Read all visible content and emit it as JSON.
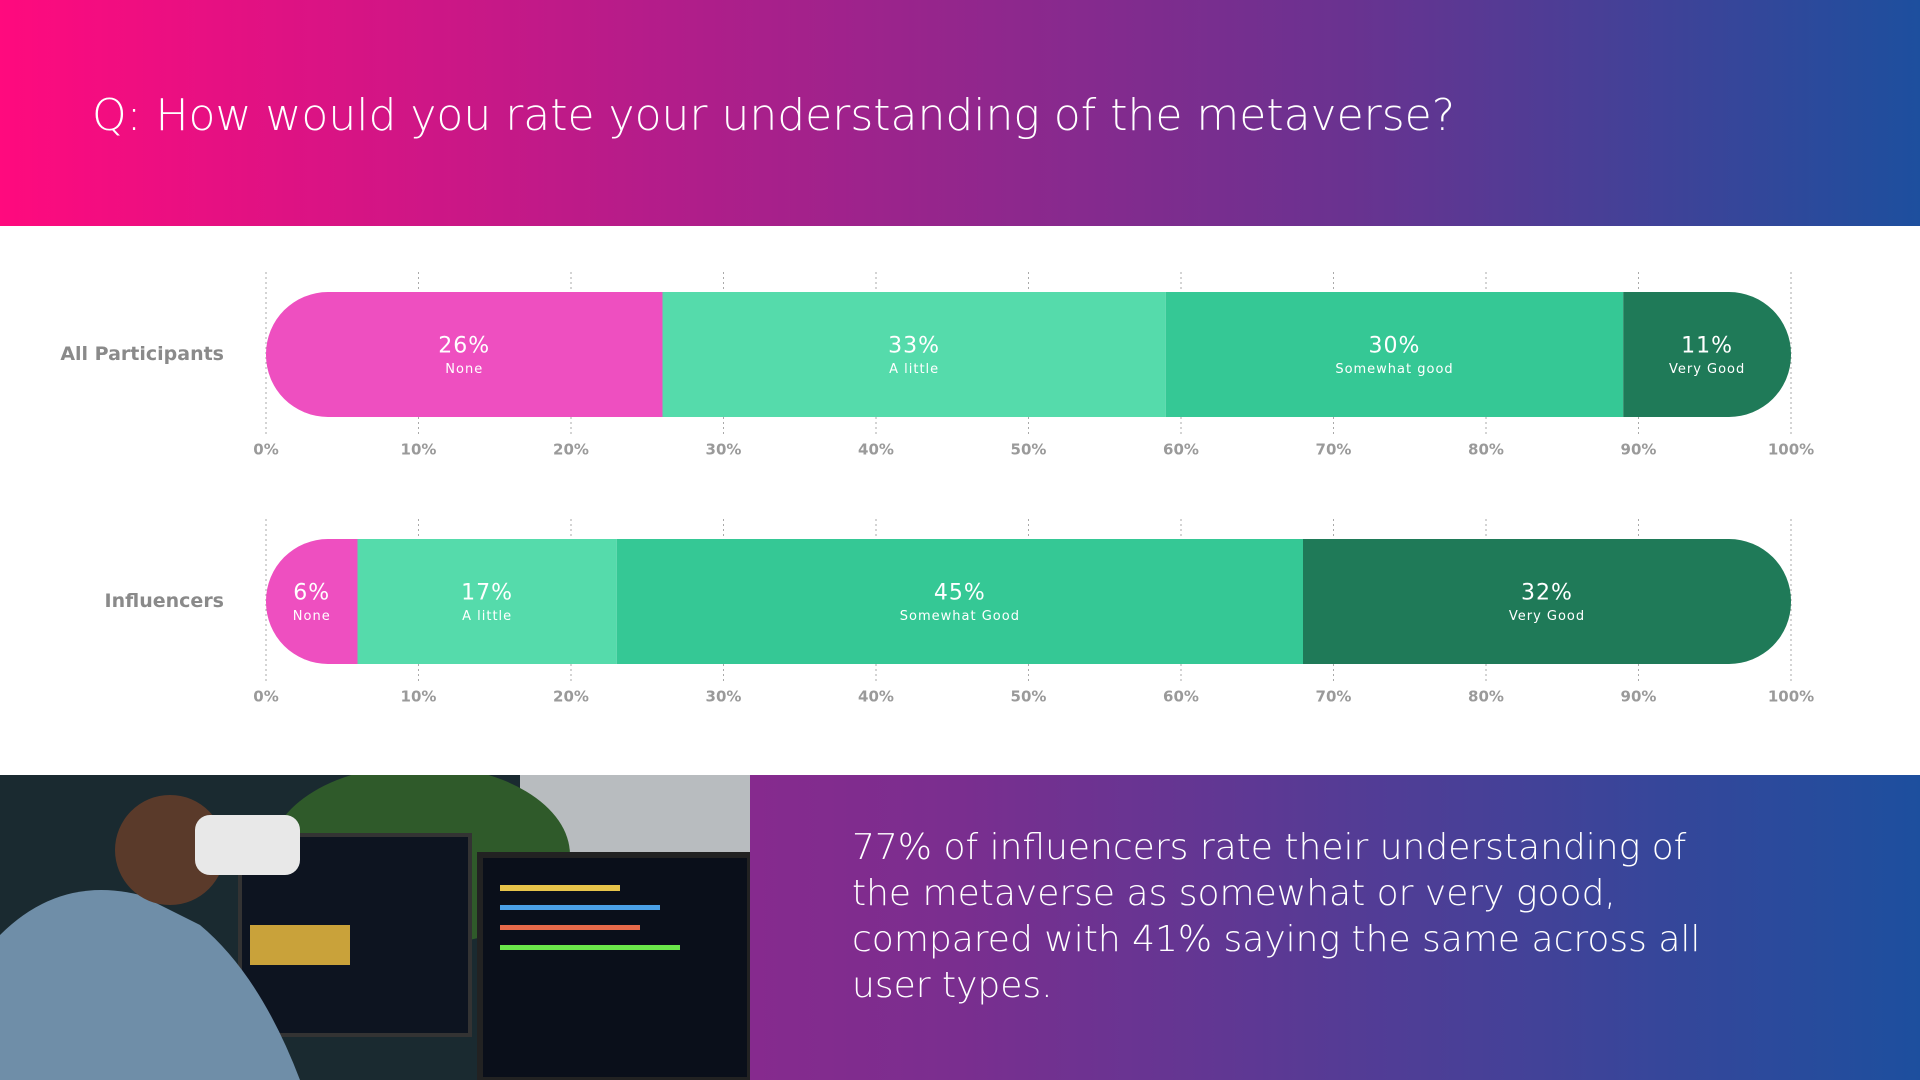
{
  "header": {
    "title": "Q: How would you rate your understanding of the metaverse?"
  },
  "caption": "77% of influencers rate their understanding of the metaverse as somewhat or very good, compared with 41% saying the same across all user types.",
  "chart_data": [
    {
      "type": "bar",
      "orientation": "horizontal",
      "stacked": true,
      "title": "All Participants",
      "categories": [
        "None",
        "A little",
        "Somewhat good",
        "Very Good"
      ],
      "values": [
        26,
        33,
        30,
        11
      ],
      "value_labels": [
        "26%",
        "33%",
        "30%",
        "11%"
      ],
      "colors": [
        "#ee4fc0",
        "#55dbab",
        "#35c895",
        "#1f7a58"
      ],
      "xlim": [
        0,
        100
      ],
      "xticks": [
        {
          "value": 0,
          "label": "0%"
        },
        {
          "value": 10,
          "label": "10%"
        },
        {
          "value": 20,
          "label": "20%"
        },
        {
          "value": 30,
          "label": "30%"
        },
        {
          "value": 40,
          "label": "40%"
        },
        {
          "value": 50,
          "label": "50%"
        },
        {
          "value": 60,
          "label": "60%"
        },
        {
          "value": 70,
          "label": "70%"
        },
        {
          "value": 80,
          "label": "80%"
        },
        {
          "value": 90,
          "label": "90%"
        },
        {
          "value": 100,
          "label": "100%"
        }
      ]
    },
    {
      "type": "bar",
      "orientation": "horizontal",
      "stacked": true,
      "title": "Influencers",
      "categories": [
        "None",
        "A little",
        "Somewhat Good",
        "Very Good"
      ],
      "values": [
        6,
        17,
        45,
        32
      ],
      "value_labels": [
        "6%",
        "17%",
        "45%",
        "32%"
      ],
      "colors": [
        "#ee4fc0",
        "#55dbab",
        "#35c895",
        "#1f7a58"
      ],
      "xlim": [
        0,
        100
      ],
      "xticks": [
        {
          "value": 0,
          "label": "0%"
        },
        {
          "value": 10,
          "label": "10%"
        },
        {
          "value": 20,
          "label": "20%"
        },
        {
          "value": 30,
          "label": "30%"
        },
        {
          "value": 40,
          "label": "40%"
        },
        {
          "value": 50,
          "label": "50%"
        },
        {
          "value": 60,
          "label": "60%"
        },
        {
          "value": 70,
          "label": "70%"
        },
        {
          "value": 80,
          "label": "80%"
        },
        {
          "value": 90,
          "label": "90%"
        },
        {
          "value": 100,
          "label": "100%"
        }
      ]
    }
  ]
}
